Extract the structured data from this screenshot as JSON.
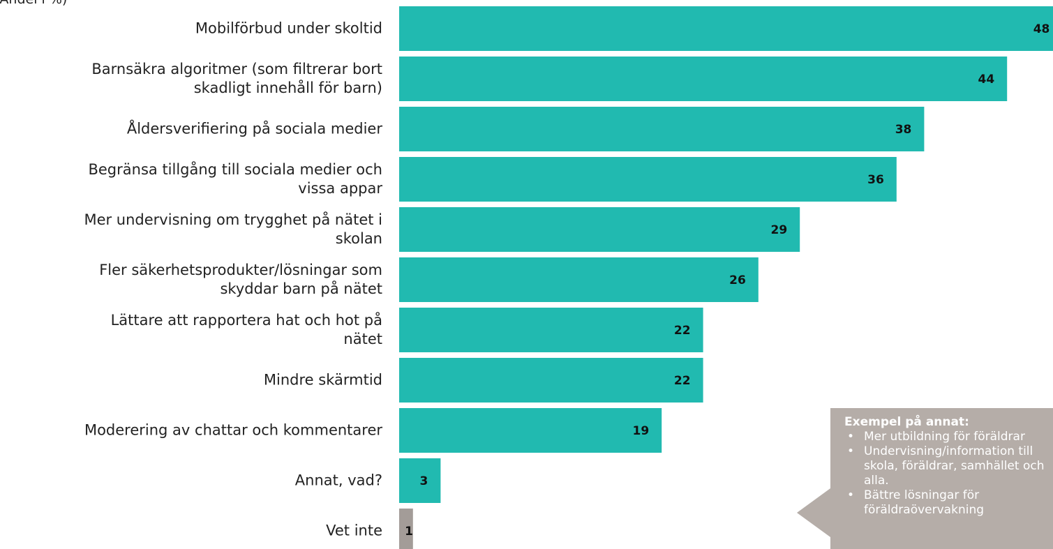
{
  "chart_data": {
    "type": "barh",
    "subtitle": "(Andel i %)",
    "categories": [
      "Mobilförbud under skoltid",
      "Barnsäkra algoritmer (som filtrerar bort\nskadligt innehåll för barn)",
      "Åldersverifiering på sociala medier",
      "Begränsa tillgång till sociala medier och\nvissa appar",
      "Mer undervisning om trygghet på nätet i\nskolan",
      "Fler säkerhetsprodukter/lösningar som\nskyddar barn på nätet",
      "Lättare att rapportera hat och hot på\nnätet",
      "Mindre skärmtid",
      "Moderering av chattar och kommentarer",
      "Annat, vad?",
      "Vet inte"
    ],
    "values": [
      48,
      44,
      38,
      36,
      29,
      26,
      22,
      22,
      19,
      3,
      1
    ],
    "colors": [
      "#21bab0",
      "#21bab0",
      "#21bab0",
      "#21bab0",
      "#21bab0",
      "#21bab0",
      "#21bab0",
      "#21bab0",
      "#21bab0",
      "#21bab0",
      "#a39c98"
    ],
    "xlim": [
      0,
      48
    ],
    "annotation": {
      "title": "Exempel på annat:",
      "items": [
        "Mer utbildning för föräldrar",
        "Undervisning/information till skola, föräldrar, samhället och alla.",
        "Bättre lösningar för föräldraövervakning"
      ]
    }
  }
}
